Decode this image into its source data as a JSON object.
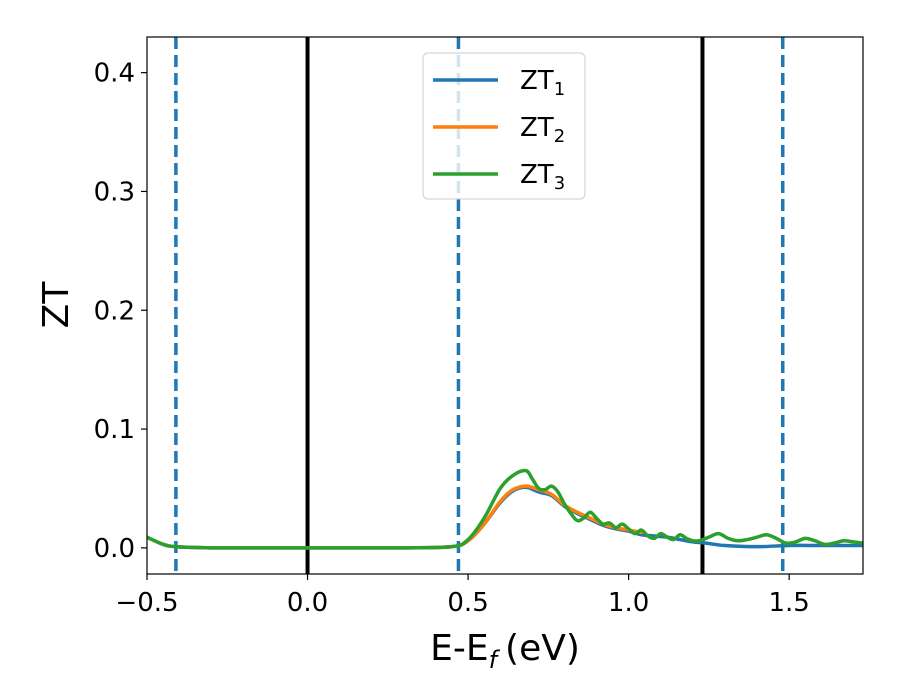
{
  "chart_data": {
    "type": "line",
    "xlabel": "E-E",
    "xlabel_subscript": "f",
    "xlabel_unit": "(eV)",
    "ylabel": "ZT",
    "xlim": [
      -0.5,
      1.73
    ],
    "ylim": [
      -0.022,
      0.43
    ],
    "xticks": [
      -0.5,
      0.0,
      0.5,
      1.0,
      1.5
    ],
    "xtick_labels": [
      "−0.5",
      "0.0",
      "0.5",
      "1.0",
      "1.5"
    ],
    "yticks": [
      0.0,
      0.1,
      0.2,
      0.3,
      0.4
    ],
    "ytick_labels": [
      "0.0",
      "0.1",
      "0.2",
      "0.3",
      "0.4"
    ],
    "grid": false,
    "legend_position": "top-center",
    "vlines_solid": [
      0.0,
      1.23
    ],
    "vlines_dashed": [
      -0.41,
      0.47,
      1.48
    ],
    "vline_solid_color": "#000000",
    "vline_dashed_color": "#1f77b4",
    "series": [
      {
        "name": "ZT",
        "subscript": "1",
        "color": "#1f77b4",
        "x": [
          -0.5,
          -0.45,
          -0.41,
          -0.3,
          0.0,
          0.3,
          0.45,
          0.5,
          0.55,
          0.6,
          0.64,
          0.68,
          0.72,
          0.76,
          0.8,
          0.84,
          0.88,
          0.92,
          0.96,
          1.0,
          1.04,
          1.08,
          1.12,
          1.16,
          1.2,
          1.24,
          1.3,
          1.4,
          1.5,
          1.6,
          1.73
        ],
        "y": [
          0.009,
          0.003,
          0.001,
          0.0,
          0.0,
          0.0,
          0.001,
          0.006,
          0.02,
          0.038,
          0.048,
          0.051,
          0.047,
          0.044,
          0.035,
          0.029,
          0.024,
          0.019,
          0.016,
          0.014,
          0.011,
          0.01,
          0.009,
          0.007,
          0.005,
          0.004,
          0.002,
          0.001,
          0.002,
          0.002,
          0.002
        ]
      },
      {
        "name": "ZT",
        "subscript": "2",
        "color": "#ff7f0e",
        "x": [
          -0.5,
          -0.45,
          -0.41,
          -0.3,
          0.0,
          0.3,
          0.45,
          0.5,
          0.55,
          0.6,
          0.64,
          0.68,
          0.72,
          0.76,
          0.8,
          0.84,
          0.88,
          0.92,
          0.96,
          1.0,
          1.04
        ],
        "y": [
          0.009,
          0.003,
          0.001,
          0.0,
          0.0,
          0.0,
          0.001,
          0.006,
          0.02,
          0.039,
          0.049,
          0.052,
          0.049,
          0.045,
          0.036,
          0.03,
          0.025,
          0.02,
          0.017,
          0.015,
          0.013
        ]
      },
      {
        "name": "ZT",
        "subscript": "3",
        "color": "#2ca02c",
        "x": [
          -0.5,
          -0.45,
          -0.41,
          -0.3,
          0.0,
          0.3,
          0.45,
          0.5,
          0.55,
          0.6,
          0.64,
          0.68,
          0.7,
          0.72,
          0.74,
          0.76,
          0.78,
          0.8,
          0.82,
          0.84,
          0.86,
          0.88,
          0.9,
          0.92,
          0.94,
          0.96,
          0.98,
          1.0,
          1.02,
          1.04,
          1.06,
          1.08,
          1.1,
          1.12,
          1.14,
          1.16,
          1.18,
          1.2,
          1.22,
          1.25,
          1.28,
          1.31,
          1.34,
          1.37,
          1.4,
          1.43,
          1.46,
          1.49,
          1.52,
          1.55,
          1.58,
          1.61,
          1.64,
          1.67,
          1.7,
          1.73
        ],
        "y": [
          0.009,
          0.003,
          0.001,
          0.0,
          0.0,
          0.0,
          0.001,
          0.007,
          0.025,
          0.05,
          0.061,
          0.065,
          0.058,
          0.05,
          0.049,
          0.052,
          0.047,
          0.037,
          0.029,
          0.023,
          0.025,
          0.03,
          0.025,
          0.02,
          0.021,
          0.017,
          0.02,
          0.016,
          0.012,
          0.015,
          0.01,
          0.008,
          0.012,
          0.009,
          0.007,
          0.011,
          0.008,
          0.006,
          0.006,
          0.009,
          0.012,
          0.008,
          0.006,
          0.007,
          0.009,
          0.011,
          0.008,
          0.004,
          0.005,
          0.008,
          0.006,
          0.003,
          0.004,
          0.006,
          0.005,
          0.004
        ]
      }
    ]
  }
}
